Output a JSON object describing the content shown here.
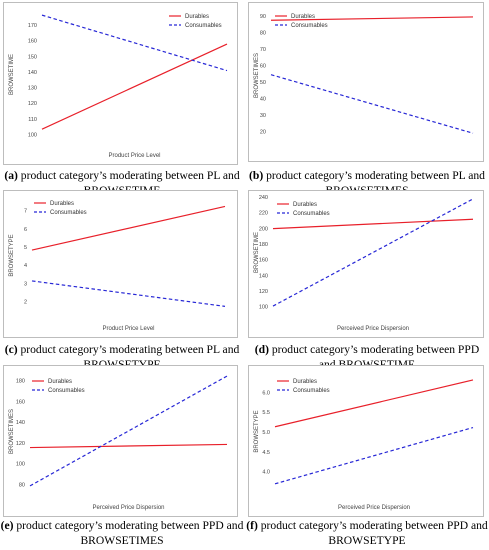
{
  "figure": {
    "legend_durables": "Durables",
    "legend_consumables": "Consumables",
    "colors": {
      "durables": "#e8202a",
      "consumables": "#2727d6"
    }
  },
  "chart_data": [
    {
      "id": "a",
      "type": "line",
      "caption_letter": "(a)",
      "caption_text": " product category’s moderating between PL and BROWSETIME",
      "xlabel": "Product Price Level",
      "ylabel": "BROWSETIME",
      "ylim": [
        98,
        178
      ],
      "yticks": [
        100,
        110,
        120,
        130,
        140,
        150,
        160,
        170
      ],
      "grid": false,
      "legend_position": "top-right",
      "series": [
        {
          "name": "Durables",
          "style": "solid",
          "values": [
            103,
            157.5
          ]
        },
        {
          "name": "Consumables",
          "style": "dashed",
          "values": [
            176,
            140.5
          ]
        }
      ]
    },
    {
      "id": "b",
      "type": "line",
      "caption_letter": "(b)",
      "caption_text": " product category’s moderating between PL and BROWSETIMES",
      "xlabel": "",
      "ylabel": "BROWSETIMES",
      "ylim": [
        15,
        92
      ],
      "yticks": [
        20,
        30,
        40,
        50,
        60,
        70,
        80,
        90
      ],
      "grid": false,
      "legend_position": "top-left",
      "series": [
        {
          "name": "Durables",
          "style": "solid",
          "values": [
            87,
            89
          ]
        },
        {
          "name": "Consumables",
          "style": "dashed",
          "values": [
            54,
            18.5
          ]
        }
      ]
    },
    {
      "id": "c",
      "type": "line",
      "caption_letter": "(c)",
      "caption_text": " product category’s moderating between PL and BROWSETYPE",
      "xlabel": "Product Price Level",
      "ylabel": "BROWSETYPE",
      "ylim": [
        1.5,
        7.5
      ],
      "yticks": [
        2,
        3,
        4,
        5,
        6,
        7
      ],
      "grid": false,
      "legend_position": "top-left",
      "series": [
        {
          "name": "Durables",
          "style": "solid",
          "values": [
            4.8,
            7.2
          ]
        },
        {
          "name": "Consumables",
          "style": "dashed",
          "values": [
            3.1,
            1.7
          ]
        }
      ]
    },
    {
      "id": "d",
      "type": "line",
      "caption_letter": "(d)",
      "caption_text": " product category’s moderating between PPD and BROWSETIME",
      "xlabel": "Perceived Price Dispersion",
      "ylabel": "BROWSETIME",
      "ylim": [
        95,
        242
      ],
      "yticks": [
        100,
        120,
        140,
        160,
        180,
        200,
        220,
        240
      ],
      "grid": false,
      "legend_position": "top-left",
      "series": [
        {
          "name": "Durables",
          "style": "solid",
          "values": [
            199,
            211
          ]
        },
        {
          "name": "Consumables",
          "style": "dashed",
          "values": [
            100,
            237
          ]
        }
      ]
    },
    {
      "id": "e",
      "type": "line",
      "caption_letter": "(e)",
      "caption_text": " product category’s moderating between PPD and BROWSETIMES",
      "xlabel": "Perceived Price Dispersion",
      "ylabel": "BROWSETIMES",
      "ylim": [
        75,
        186
      ],
      "yticks": [
        80,
        100,
        120,
        140,
        160,
        180
      ],
      "grid": false,
      "legend_position": "top-left",
      "series": [
        {
          "name": "Durables",
          "style": "solid",
          "values": [
            115,
            118
          ]
        },
        {
          "name": "Consumables",
          "style": "dashed",
          "values": [
            78,
            184
          ]
        }
      ]
    },
    {
      "id": "f",
      "type": "line",
      "caption_letter": "(f)",
      "caption_text": " product category’s moderating between PPD and BROWSETYPE",
      "xlabel": "Perceived Price Dispersion",
      "ylabel": "BROWSETYPE",
      "ylim": [
        3.55,
        6.45
      ],
      "yticks": [
        4.0,
        4.5,
        5.0,
        5.5,
        6.0
      ],
      "ytick_decimals": 1,
      "grid": false,
      "legend_position": "top-left",
      "series": [
        {
          "name": "Durables",
          "style": "solid",
          "values": [
            5.12,
            6.3
          ]
        },
        {
          "name": "Consumables",
          "style": "dashed",
          "values": [
            3.68,
            5.1
          ]
        }
      ]
    }
  ]
}
